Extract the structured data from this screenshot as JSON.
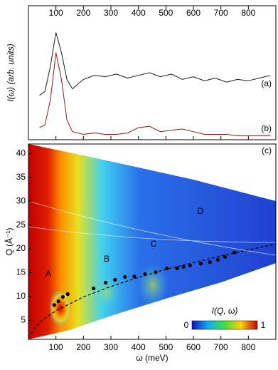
{
  "chart_data": [
    {
      "type": "line",
      "ylabel": "I(ω) (arb. units)",
      "x": [
        40,
        60,
        80,
        100,
        120,
        140,
        160,
        200,
        240,
        280,
        320,
        360,
        400,
        440,
        480,
        520,
        560,
        600,
        640,
        680,
        720,
        760,
        800,
        840,
        880
      ],
      "series": [
        {
          "color": "#1a1a1a",
          "values": [
            3.3,
            3.6,
            5.5,
            8.0,
            6.5,
            4.5,
            3.8,
            4.5,
            4.8,
            4.7,
            4.9,
            4.6,
            4.8,
            5.0,
            4.7,
            4.9,
            4.5,
            4.7,
            4.4,
            4.6,
            4.3,
            4.5,
            4.4,
            4.6,
            4.8
          ]
        },
        {
          "color": "#8b1a1a",
          "values": [
            0.9,
            1.1,
            3.0,
            6.5,
            4.5,
            1.5,
            0.6,
            0.4,
            0.5,
            0.4,
            0.4,
            0.5,
            0.9,
            1.0,
            0.6,
            0.7,
            0.8,
            0.6,
            0.4,
            0.4,
            0.4,
            0.3,
            0.3,
            0.3,
            0.3
          ]
        }
      ],
      "xlim": [
        0,
        900
      ],
      "xticks": [
        100,
        200,
        300,
        400,
        500,
        600,
        700,
        800
      ],
      "ylim": [
        0,
        10
      ],
      "annotations": [
        "(a)",
        "(b)"
      ]
    },
    {
      "type": "scatter",
      "xlabel": "ω (meV)",
      "ylabel": "Q (Å⁻¹)",
      "xlim": [
        0,
        900
      ],
      "xticks": [
        100,
        200,
        300,
        400,
        500,
        600,
        700,
        800
      ],
      "ylim": [
        1,
        42
      ],
      "yticks": [
        5,
        10,
        15,
        20,
        25,
        30,
        35,
        40
      ],
      "points": {
        "color": "#000000",
        "x": [
          94,
          109,
          125,
          143,
          237,
          281,
          315,
          351,
          385,
          424,
          463,
          504,
          541,
          564,
          588,
          627,
          660,
          689,
          715,
          749
        ],
        "y": [
          8.2,
          9.0,
          9.9,
          10.5,
          11.7,
          12.9,
          13.5,
          14.1,
          14.2,
          14.7,
          15.1,
          15.9,
          15.9,
          16.2,
          16.5,
          16.9,
          17.2,
          17.7,
          18.3,
          19.2
        ]
      },
      "curve": {
        "color": "#000000",
        "x": [
          10,
          25,
          50,
          100,
          200,
          300,
          400,
          500,
          600,
          700,
          800,
          900
        ],
        "values": [
          2.2,
          3.5,
          5,
          7,
          9.9,
          12.1,
          14,
          15.7,
          17.1,
          18.5,
          19.8,
          21
        ]
      },
      "region_labels": [
        "A",
        "B",
        "C",
        "D"
      ],
      "panel_label": "(c)",
      "colorbar": {
        "label": "I(Q, ω)",
        "ticks": [
          0,
          1
        ]
      }
    }
  ]
}
